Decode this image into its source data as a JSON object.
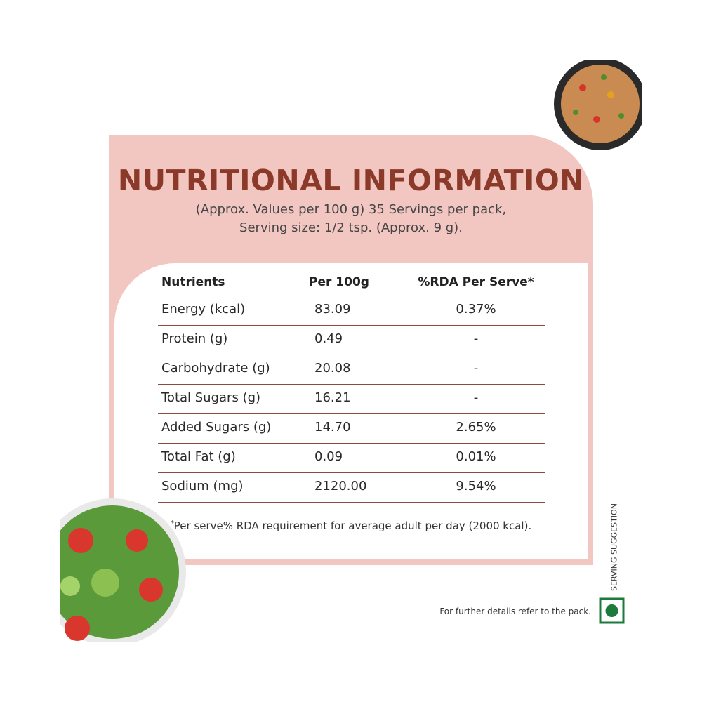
{
  "header": {
    "title": "NUTRITIONAL INFORMATION",
    "subtitle": [
      "(Approx. Values per 100 g) 35 Servings per pack,",
      "Serving size: 1/2 tsp. (Approx. 9 g)."
    ]
  },
  "table": {
    "columns": [
      "Nutrients",
      "Per 100g",
      "%RDA Per Serve*"
    ],
    "rows": [
      [
        "Energy (kcal)",
        "83.09",
        "0.37%"
      ],
      [
        "Protein (g)",
        "0.49",
        "-"
      ],
      [
        "Carbohydrate (g)",
        "20.08",
        "-"
      ],
      [
        "Total Sugars (g)",
        "16.21",
        "-"
      ],
      [
        "Added Sugars (g)",
        "14.70",
        "2.65%"
      ],
      [
        "Total Fat (g)",
        "0.09",
        "0.01%"
      ],
      [
        "Sodium (mg)",
        "2120.00",
        "9.54%"
      ]
    ]
  },
  "footnote": {
    "marker": "*",
    "text": "Per serve% RDA requirement for average adult per day (2000 kcal)."
  },
  "side_label": "SERVING SUGGESTION",
  "pack_note": "For further details refer to the pack."
}
